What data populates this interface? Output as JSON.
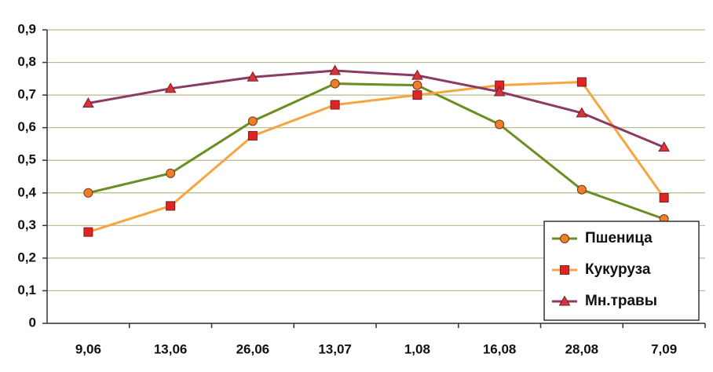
{
  "chart_data": {
    "type": "line",
    "categories": [
      "9,06",
      "13,06",
      "26,06",
      "13,07",
      "1,08",
      "16,08",
      "28,08",
      "7,09"
    ],
    "series": [
      {
        "name": "Пшеница",
        "color": "#6b8e23",
        "marker": "circle",
        "marker_color": "#f07d2c",
        "values": [
          0.4,
          0.46,
          0.62,
          0.735,
          0.73,
          0.61,
          0.41,
          0.32
        ]
      },
      {
        "name": "Кукуруза",
        "color": "#f5a640",
        "marker": "square",
        "marker_color": "#e02424",
        "values": [
          0.28,
          0.36,
          0.575,
          0.67,
          0.7,
          0.73,
          0.74,
          0.385
        ]
      },
      {
        "name": "Мн.травы",
        "color": "#8b3a62",
        "marker": "triangle",
        "marker_color": "#d8323f",
        "values": [
          0.675,
          0.72,
          0.755,
          0.775,
          0.76,
          0.71,
          0.645,
          0.54
        ]
      }
    ],
    "ylim": [
      0,
      0.9
    ],
    "yticks": [
      0,
      {
        "value": 0.1,
        "label": "0,1"
      },
      {
        "value": 0.2,
        "label": "0,2"
      },
      {
        "value": 0.3,
        "label": "0,3"
      },
      {
        "value": 0.4,
        "label": "0,4"
      },
      {
        "value": 0.5,
        "label": "0,5"
      },
      {
        "value": 0.6,
        "label": "0,6"
      },
      {
        "value": 0.7,
        "label": "0,7"
      },
      {
        "value": 0.8,
        "label": "0,8"
      },
      {
        "value": 0.9,
        "label": "0,9"
      }
    ],
    "grid": true,
    "legend": "lower right"
  }
}
